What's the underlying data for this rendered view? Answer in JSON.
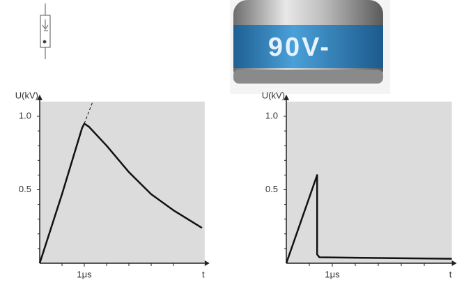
{
  "photo": {
    "label": "90V-"
  },
  "chart_data": [
    {
      "type": "line",
      "ylabel": "U(kV)",
      "xlabel": "t",
      "xlim": [
        0,
        3.7
      ],
      "ylim": [
        0,
        1.1
      ],
      "xticks": [
        {
          "value": 1,
          "label": "1μs"
        }
      ],
      "xminor": [
        0.5,
        1.5,
        2,
        2.5,
        3
      ],
      "yticks": [
        {
          "value": 0.5,
          "label": "0.5"
        },
        {
          "value": 1,
          "label": "1.0"
        }
      ],
      "yminor": [
        0.1,
        0.2,
        0.3,
        0.4,
        0.6,
        0.7,
        0.8,
        0.9
      ],
      "series": [
        {
          "color": "#111111",
          "x": [
            0,
            0.5,
            0.95,
            1.0,
            1.1,
            1.5,
            2.0,
            2.5,
            3.0,
            3.64
          ],
          "values": [
            0,
            0.47,
            0.92,
            0.95,
            0.93,
            0.8,
            0.62,
            0.47,
            0.36,
            0.24
          ]
        },
        {
          "color": "#111111",
          "dashed": true,
          "x": [
            1.0,
            1.19
          ],
          "values": [
            0.95,
            1.1
          ]
        }
      ]
    },
    {
      "type": "line",
      "ylabel": "U(kV)",
      "xlabel": "t",
      "xlim": [
        0,
        3.6
      ],
      "ylim": [
        0,
        1.1
      ],
      "xticks": [
        {
          "value": 1,
          "label": "1μs"
        }
      ],
      "xminor": [
        0.5,
        1.5,
        2,
        2.5,
        3
      ],
      "yticks": [
        {
          "value": 0.5,
          "label": "0.5"
        },
        {
          "value": 1,
          "label": "1.0"
        }
      ],
      "yminor": [
        0.1,
        0.2,
        0.3,
        0.4,
        0.6,
        0.7,
        0.8,
        0.9
      ],
      "series": [
        {
          "color": "#111111",
          "x": [
            0,
            0.67,
            0.67,
            0.72,
            3.6
          ],
          "values": [
            0,
            0.6,
            0.06,
            0.04,
            0.03
          ]
        }
      ]
    }
  ]
}
